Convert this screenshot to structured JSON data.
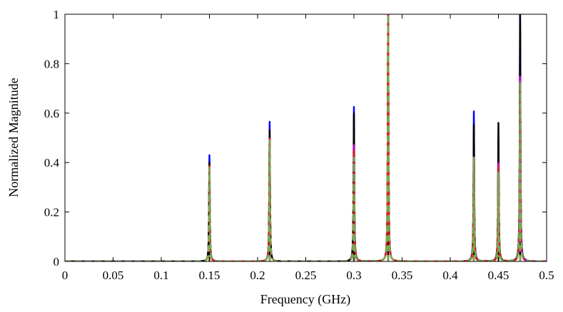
{
  "chart_data": {
    "type": "line",
    "title": "",
    "xlabel": "Frequency (GHz)",
    "ylabel": "Normalized Magnitude",
    "xlim": [
      0,
      0.5
    ],
    "ylim": [
      0,
      1
    ],
    "x_ticks": [
      0,
      0.05,
      0.1,
      0.15,
      0.2,
      0.25,
      0.3,
      0.35,
      0.4,
      0.45,
      0.5
    ],
    "x_tick_labels": [
      "0",
      "0.05",
      "0.1",
      "0.15",
      "0.2",
      "0.25",
      "0.3",
      "0.35",
      "0.4",
      "0.45",
      "0.5"
    ],
    "y_ticks": [
      0,
      0.2,
      0.4,
      0.6,
      0.8,
      1
    ],
    "y_tick_labels": [
      "0",
      "0.2",
      "0.4",
      "0.6",
      "0.8",
      "1"
    ],
    "grid": false,
    "legend": "none",
    "series": [
      {
        "color": "#0000ff",
        "style": "solid",
        "peaks": [
          {
            "x": 0.15,
            "y": 0.43
          },
          {
            "x": 0.2125,
            "y": 0.565
          },
          {
            "x": 0.3,
            "y": 0.625
          },
          {
            "x": 0.3355,
            "y": 1.0
          },
          {
            "x": 0.4245,
            "y": 0.607
          },
          {
            "x": 0.45,
            "y": 0.5
          },
          {
            "x": 0.4725,
            "y": 1.0
          }
        ]
      },
      {
        "color": "#000000",
        "style": "solid",
        "peaks": [
          {
            "x": 0.15,
            "y": 0.4
          },
          {
            "x": 0.2125,
            "y": 0.53
          },
          {
            "x": 0.3,
            "y": 0.6
          },
          {
            "x": 0.3355,
            "y": 0.98
          },
          {
            "x": 0.4245,
            "y": 0.553
          },
          {
            "x": 0.45,
            "y": 0.56
          },
          {
            "x": 0.4725,
            "y": 1.0
          }
        ]
      },
      {
        "color": "#cc00cc",
        "style": "dashed",
        "peaks": [
          {
            "x": 0.15,
            "y": 0.39
          },
          {
            "x": 0.2125,
            "y": 0.5
          },
          {
            "x": 0.3,
            "y": 0.47
          },
          {
            "x": 0.3355,
            "y": 1.0
          },
          {
            "x": 0.4245,
            "y": 0.42
          },
          {
            "x": 0.45,
            "y": 0.4
          },
          {
            "x": 0.4725,
            "y": 0.75
          }
        ]
      },
      {
        "color": "#e0201a",
        "style": "dashed",
        "peaks": [
          {
            "x": 0.15,
            "y": 0.39
          },
          {
            "x": 0.2125,
            "y": 0.5
          },
          {
            "x": 0.3,
            "y": 0.45
          },
          {
            "x": 0.3355,
            "y": 1.0
          },
          {
            "x": 0.4245,
            "y": 0.42
          },
          {
            "x": 0.45,
            "y": 0.38
          },
          {
            "x": 0.4725,
            "y": 0.72
          }
        ]
      },
      {
        "color": "#7aa84e",
        "style": "dashed",
        "peaks": [
          {
            "x": 0.15,
            "y": 0.38
          },
          {
            "x": 0.2125,
            "y": 0.49
          },
          {
            "x": 0.3,
            "y": 0.42
          },
          {
            "x": 0.3355,
            "y": 1.0
          },
          {
            "x": 0.4245,
            "y": 0.42
          },
          {
            "x": 0.45,
            "y": 0.36
          },
          {
            "x": 0.4725,
            "y": 0.73
          }
        ]
      }
    ]
  }
}
